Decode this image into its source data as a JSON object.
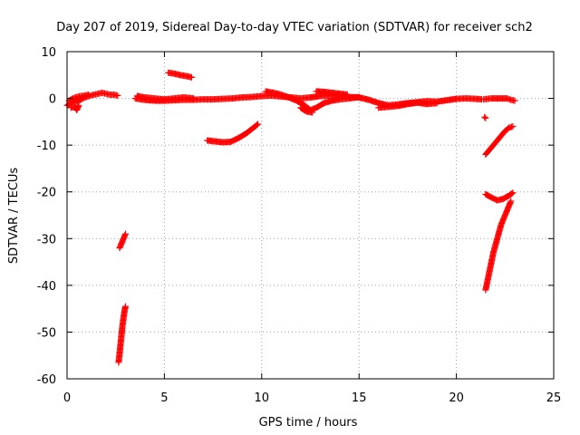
{
  "chart_data": {
    "type": "scatter",
    "title": "Day 207 of 2019, Sidereal Day-to-day VTEC variation (SDTVAR) for receiver sch2",
    "xlabel": "GPS time / hours",
    "ylabel": "SDTVAR / TECUs",
    "xlim": [
      0,
      25
    ],
    "ylim": [
      -60,
      10
    ],
    "xticks": [
      0,
      5,
      10,
      15,
      20,
      25
    ],
    "yticks": [
      10,
      0,
      -10,
      -20,
      -30,
      -40,
      -50,
      -60
    ],
    "grid": true,
    "marker": "plus",
    "color": "#ff0000",
    "segments": [
      {
        "points": [
          [
            0.0,
            -1.5
          ],
          [
            0.2,
            -1.0
          ],
          [
            0.4,
            -0.8
          ],
          [
            0.6,
            -0.5
          ],
          [
            0.8,
            0.0
          ],
          [
            1.0,
            0.3
          ],
          [
            1.2,
            0.6
          ],
          [
            1.4,
            0.8
          ],
          [
            1.6,
            1.0
          ],
          [
            1.8,
            1.2
          ],
          [
            2.0,
            1.0
          ],
          [
            2.2,
            0.8
          ],
          [
            2.4,
            0.8
          ],
          [
            2.6,
            0.6
          ]
        ]
      },
      {
        "points": [
          [
            0.1,
            -0.5
          ],
          [
            0.3,
            0.0
          ],
          [
            0.5,
            0.3
          ],
          [
            0.7,
            0.5
          ],
          [
            0.9,
            0.6
          ],
          [
            1.1,
            0.8
          ]
        ]
      },
      {
        "points": [
          [
            0.2,
            -2.0
          ],
          [
            0.4,
            -1.8
          ],
          [
            0.5,
            -2.5
          ],
          [
            0.6,
            -1.5
          ]
        ]
      },
      {
        "points": [
          [
            2.7,
            -32.0
          ],
          [
            2.8,
            -31.0
          ],
          [
            2.9,
            -30.0
          ],
          [
            3.0,
            -29.0
          ]
        ]
      },
      {
        "points": [
          [
            2.65,
            -56.5
          ],
          [
            2.7,
            -54.5
          ],
          [
            2.75,
            -52.5
          ],
          [
            2.8,
            -50.5
          ],
          [
            2.85,
            -48.5
          ],
          [
            2.9,
            -47.0
          ],
          [
            2.95,
            -45.5
          ],
          [
            3.0,
            -44.5
          ]
        ]
      },
      {
        "points": [
          [
            3.5,
            0.0
          ],
          [
            3.8,
            -0.2
          ],
          [
            4.2,
            -0.4
          ],
          [
            4.6,
            -0.5
          ],
          [
            5.0,
            -0.5
          ],
          [
            5.5,
            -0.4
          ],
          [
            6.0,
            -0.3
          ],
          [
            6.5,
            -0.3
          ],
          [
            7.0,
            -0.2
          ],
          [
            7.5,
            -0.2
          ],
          [
            8.0,
            -0.1
          ],
          [
            8.5,
            0.0
          ],
          [
            9.0,
            0.2
          ],
          [
            9.5,
            0.3
          ],
          [
            10.0,
            0.5
          ],
          [
            10.5,
            0.6
          ],
          [
            11.0,
            0.4
          ],
          [
            11.5,
            0.2
          ],
          [
            12.0,
            0.0
          ],
          [
            12.5,
            0.2
          ],
          [
            13.0,
            0.5
          ],
          [
            13.5,
            0.6
          ],
          [
            14.0,
            0.5
          ],
          [
            14.5,
            0.3
          ],
          [
            15.0,
            0.2
          ],
          [
            15.5,
            -0.3
          ],
          [
            16.0,
            -1.0
          ],
          [
            16.5,
            -1.5
          ],
          [
            17.0,
            -1.3
          ],
          [
            17.5,
            -1.0
          ],
          [
            18.0,
            -0.8
          ],
          [
            18.5,
            -0.6
          ],
          [
            19.0,
            -0.7
          ],
          [
            19.5,
            -0.4
          ],
          [
            20.0,
            -0.1
          ],
          [
            20.5,
            0.0
          ],
          [
            21.0,
            -0.1
          ],
          [
            21.3,
            -0.2
          ]
        ]
      },
      {
        "points": [
          [
            3.6,
            0.5
          ],
          [
            4.0,
            0.2
          ],
          [
            4.5,
            0.0
          ],
          [
            5.0,
            -0.2
          ],
          [
            5.5,
            0.0
          ],
          [
            6.0,
            0.2
          ],
          [
            6.5,
            0.0
          ]
        ]
      },
      {
        "points": [
          [
            10.2,
            1.5
          ],
          [
            10.6,
            1.2
          ],
          [
            11.0,
            0.8
          ],
          [
            11.4,
            0.2
          ],
          [
            11.8,
            -0.5
          ],
          [
            12.2,
            -1.5
          ],
          [
            12.5,
            -2.5
          ],
          [
            12.8,
            -2.0
          ],
          [
            13.2,
            -1.0
          ],
          [
            13.6,
            -0.5
          ],
          [
            14.0,
            -0.2
          ],
          [
            14.5,
            0.0
          ],
          [
            15.0,
            0.3
          ]
        ]
      },
      {
        "points": [
          [
            12.0,
            -2.0
          ],
          [
            12.3,
            -2.8
          ],
          [
            12.6,
            -3.0
          ]
        ]
      },
      {
        "points": [
          [
            12.8,
            1.5
          ],
          [
            13.2,
            1.4
          ],
          [
            13.6,
            1.2
          ],
          [
            14.0,
            1.0
          ],
          [
            14.4,
            0.8
          ]
        ]
      },
      {
        "points": [
          [
            16.0,
            -2.0
          ],
          [
            16.5,
            -1.8
          ],
          [
            17.0,
            -1.6
          ],
          [
            17.5,
            -1.2
          ],
          [
            18.0,
            -0.9
          ],
          [
            18.5,
            -1.2
          ],
          [
            19.0,
            -1.0
          ]
        ]
      },
      {
        "points": [
          [
            5.2,
            5.5
          ],
          [
            5.5,
            5.3
          ],
          [
            5.8,
            5.0
          ],
          [
            6.1,
            4.8
          ],
          [
            6.4,
            4.5
          ]
        ]
      },
      {
        "points": [
          [
            7.2,
            -9.0
          ],
          [
            7.6,
            -9.2
          ],
          [
            8.0,
            -9.4
          ],
          [
            8.4,
            -9.3
          ],
          [
            8.8,
            -8.5
          ],
          [
            9.2,
            -7.5
          ],
          [
            9.6,
            -6.2
          ],
          [
            9.8,
            -5.5
          ]
        ]
      },
      {
        "points": [
          [
            21.5,
            -12.0
          ],
          [
            21.7,
            -11.0
          ],
          [
            21.9,
            -10.0
          ],
          [
            22.1,
            -9.0
          ],
          [
            22.3,
            -8.0
          ],
          [
            22.5,
            -7.0
          ],
          [
            22.7,
            -6.3
          ],
          [
            22.9,
            -6.0
          ]
        ]
      },
      {
        "points": [
          [
            21.5,
            -20.5
          ],
          [
            21.8,
            -21.2
          ],
          [
            22.1,
            -21.8
          ],
          [
            22.4,
            -21.5
          ],
          [
            22.7,
            -20.8
          ],
          [
            22.9,
            -20.2
          ]
        ]
      },
      {
        "points": [
          [
            21.5,
            -41.0
          ],
          [
            21.6,
            -39.0
          ],
          [
            21.7,
            -37.0
          ],
          [
            21.8,
            -35.0
          ],
          [
            21.9,
            -33.0
          ],
          [
            22.0,
            -31.5
          ],
          [
            22.1,
            -30.0
          ],
          [
            22.2,
            -28.5
          ],
          [
            22.3,
            -27.0
          ],
          [
            22.4,
            -26.0
          ],
          [
            22.5,
            -25.0
          ],
          [
            22.6,
            -24.0
          ],
          [
            22.7,
            -23.0
          ],
          [
            22.8,
            -22.0
          ]
        ]
      },
      {
        "points": [
          [
            21.45,
            -4.0
          ],
          [
            21.5,
            -4.2
          ]
        ]
      },
      {
        "points": [
          [
            21.4,
            -0.2
          ],
          [
            21.6,
            -0.1
          ],
          [
            21.8,
            0.0
          ],
          [
            22.6,
            0.0
          ],
          [
            22.8,
            -0.3
          ],
          [
            23.0,
            -0.5
          ]
        ]
      }
    ]
  }
}
